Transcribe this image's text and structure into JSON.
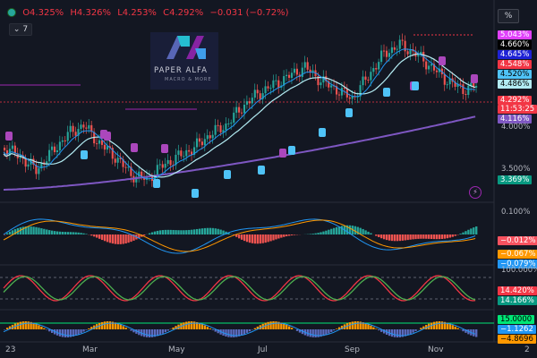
{
  "header": {
    "open": "O4.325%",
    "high": "H4.326%",
    "low": "L4.253%",
    "close": "C4.292%",
    "change": "−0.031 (−0.72%)",
    "indicator_count": "7",
    "scale_button": "%"
  },
  "logo": {
    "monogram": "PA",
    "name": "PAPER ALFA",
    "tagline": "MACRO & MORE"
  },
  "price_tags": [
    {
      "text": "5.043%",
      "color": "#e040fb",
      "text_color": "#ffffff"
    },
    {
      "text": "4.660%",
      "color": "#000000",
      "text_color": "#ffffff"
    },
    {
      "text": "4.645%",
      "color": "#1e22d6",
      "text_color": "#ffffff"
    },
    {
      "text": "4.548%",
      "color": "#f23645",
      "text_color": "#ffffff"
    },
    {
      "text": "4.520%",
      "color": "#4fc3f7",
      "text_color": "#000000"
    },
    {
      "text": "4.486%",
      "color": "#b2ebf2",
      "text_color": "#000000"
    },
    {
      "text": "4.292%",
      "color": "#f23645",
      "text_color": "#ffffff"
    },
    {
      "text": "11:53:25",
      "color": "#f23645",
      "text_color": "#ffffff"
    },
    {
      "text": "4.116%",
      "color": "#7e57c2",
      "text_color": "#ffffff"
    },
    {
      "text": "3.369%",
      "color": "#089981",
      "text_color": "#ffffff"
    }
  ],
  "axis_labels": [
    "4.000%",
    "3.500%"
  ],
  "macd": {
    "axis_label": "0.100%",
    "tags": [
      {
        "text": "−0.012%",
        "color": "#f7525f",
        "text_color": "#ffffff"
      },
      {
        "text": "−0.067%",
        "color": "#ff9800",
        "text_color": "#ffffff"
      },
      {
        "text": "−0.079%",
        "color": "#2196f3",
        "text_color": "#ffffff"
      }
    ]
  },
  "stoch": {
    "axis_label": "100.000%",
    "tags": [
      {
        "text": "14.420%",
        "color": "#f23645",
        "text_color": "#ffffff"
      },
      {
        "text": "14.166%",
        "color": "#089981",
        "text_color": "#ffffff"
      }
    ]
  },
  "osc": {
    "tags": [
      {
        "text": "15.0000",
        "color": "#00e676",
        "text_color": "#000000"
      },
      {
        "text": "−1.1262",
        "color": "#2196f3",
        "text_color": "#ffffff"
      },
      {
        "text": "−4.8696",
        "color": "#ff9800",
        "text_color": "#000000"
      }
    ]
  },
  "x_axis": [
    {
      "label": "23"
    },
    {
      "label": "Mar"
    },
    {
      "label": "May"
    },
    {
      "label": "Jul"
    },
    {
      "label": "Sep"
    },
    {
      "label": "Nov"
    }
  ],
  "x_axis_tail": "2",
  "colors": {
    "up": "#26a69a",
    "down": "#ef5350",
    "sma_fast": "#2196f3",
    "sma_slow": "#7e57c2",
    "band": "#b2ebf2"
  }
}
